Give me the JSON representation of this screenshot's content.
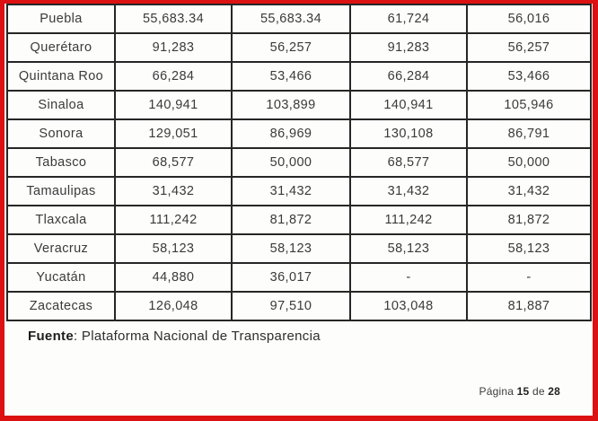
{
  "frame": {
    "border_color": "#dc1111",
    "table_border_color": "#262626",
    "background": "#fdfdfc"
  },
  "table": {
    "rows": [
      {
        "state": "Puebla",
        "values": [
          "55,683.34",
          "55,683.34",
          "61,724",
          "56,016"
        ]
      },
      {
        "state": "Querétaro",
        "values": [
          "91,283",
          "56,257",
          "91,283",
          "56,257"
        ]
      },
      {
        "state": "Quintana Roo",
        "values": [
          "66,284",
          "53,466",
          "66,284",
          "53,466"
        ]
      },
      {
        "state": "Sinaloa",
        "values": [
          "140,941",
          "103,899",
          "140,941",
          "105,946"
        ]
      },
      {
        "state": "Sonora",
        "values": [
          "129,051",
          "86,969",
          "130,108",
          "86,791"
        ]
      },
      {
        "state": "Tabasco",
        "values": [
          "68,577",
          "50,000",
          "68,577",
          "50,000"
        ]
      },
      {
        "state": "Tamaulipas",
        "values": [
          "31,432",
          "31,432",
          "31,432",
          "31,432"
        ]
      },
      {
        "state": "Tlaxcala",
        "values": [
          "111,242",
          "81,872",
          "111,242",
          "81,872"
        ]
      },
      {
        "state": "Veracruz",
        "values": [
          "58,123",
          "58,123",
          "58,123",
          "58,123"
        ]
      },
      {
        "state": "Yucatán",
        "values": [
          "44,880",
          "36,017",
          "-",
          "-"
        ]
      },
      {
        "state": "Zacatecas",
        "values": [
          "126,048",
          "97,510",
          "103,048",
          "81,887"
        ]
      }
    ]
  },
  "footer": {
    "fuente_label": "Fuente",
    "fuente_text": ": Plataforma Nacional de Transparencia"
  },
  "pagination": {
    "prefix": "Página",
    "current": "15",
    "separator": "de",
    "total": "28"
  }
}
